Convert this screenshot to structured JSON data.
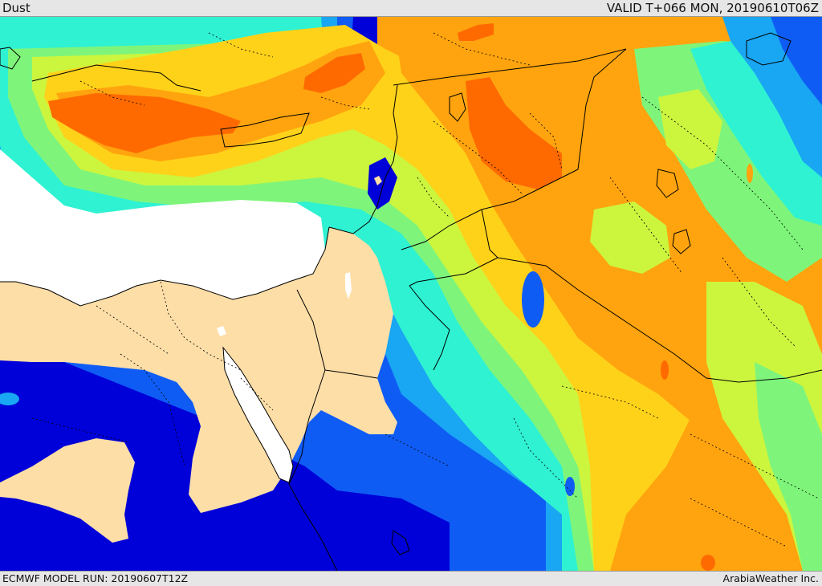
{
  "header": {
    "title": "Dust",
    "valid_time": "VALID T+066 MON, 20190610T06Z"
  },
  "footer": {
    "model_run": "ECMWF MODEL RUN: 20190607T12Z",
    "credit": "ArabiaWeather Inc."
  },
  "colors": {
    "level_1": "#0000d8",
    "level_2": "#0f5cf5",
    "level_3": "#19a6f2",
    "level_4": "#2ef2d2",
    "level_5": "#7ef57a",
    "level_6": "#ccf53e",
    "level_7": "#ffd21a",
    "level_8": "#ffa40e",
    "level_9": "#ff6a00",
    "sea_masked": "#ffffff",
    "land_masked": "#fddea7",
    "boundaries": "#000000"
  }
}
